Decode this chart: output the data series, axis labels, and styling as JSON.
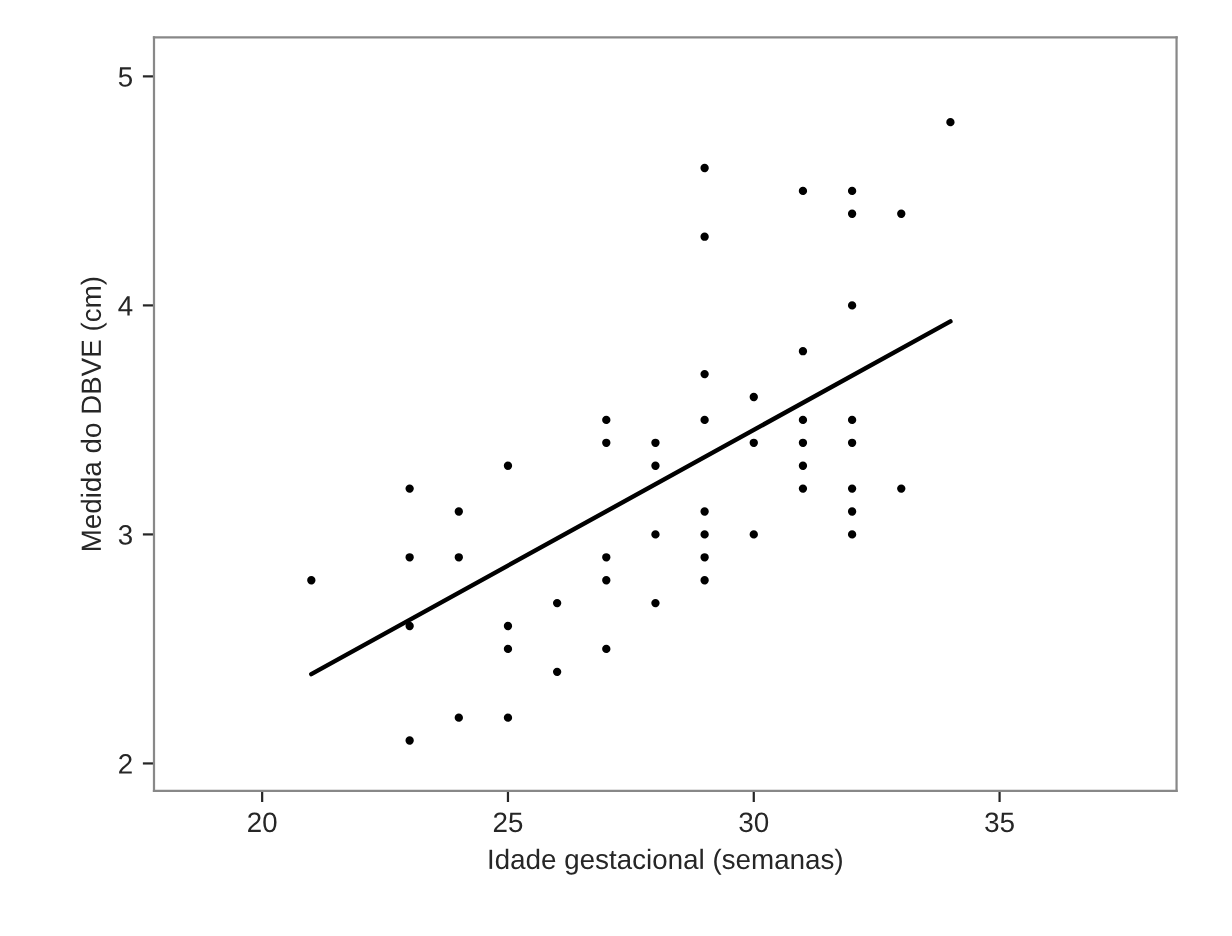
{
  "chart_data": {
    "type": "scatter",
    "xlabel": "Idade gestacional (semanas)",
    "ylabel": "Medida do DBVE (cm)",
    "xlim": [
      17.8,
      38.6
    ],
    "ylim": [
      1.88,
      5.17
    ],
    "xticks": [
      20,
      25,
      30,
      35
    ],
    "yticks": [
      2,
      3,
      4,
      5
    ],
    "grid": false,
    "legend": false,
    "series": [
      {
        "marker": "circle",
        "color": "#000000",
        "x": [
          21,
          23,
          23,
          23,
          23,
          24,
          24,
          24,
          25,
          25,
          25,
          25,
          26,
          26,
          27,
          27,
          27,
          27,
          27,
          28,
          28,
          28,
          28,
          29,
          29,
          29,
          29,
          29,
          29,
          29,
          29,
          30,
          30,
          30,
          31,
          31,
          31,
          31,
          31,
          31,
          32,
          32,
          32,
          32,
          32,
          32,
          32,
          32,
          33,
          33,
          34
        ],
        "values": [
          2.8,
          3.2,
          2.9,
          2.6,
          2.1,
          3.1,
          2.9,
          2.2,
          3.3,
          2.6,
          2.5,
          2.2,
          2.7,
          2.4,
          3.5,
          3.4,
          2.9,
          2.8,
          2.5,
          3.4,
          3.3,
          3.0,
          2.7,
          4.6,
          4.3,
          3.7,
          3.5,
          3.1,
          3.0,
          2.9,
          2.8,
          3.6,
          3.4,
          3.0,
          4.5,
          3.8,
          3.5,
          3.4,
          3.3,
          3.2,
          4.5,
          4.4,
          4.0,
          3.5,
          3.4,
          3.2,
          3.1,
          3.0,
          4.4,
          3.2,
          4.8
        ]
      },
      {
        "type": "line",
        "marker": "none",
        "color": "#000000",
        "x": [
          21,
          34
        ],
        "values": [
          2.39,
          3.93
        ]
      }
    ]
  }
}
